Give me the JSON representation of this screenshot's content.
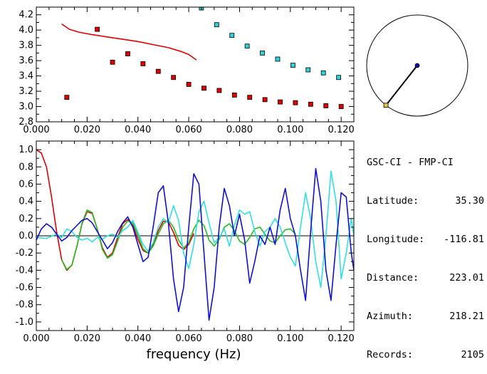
{
  "chart_data": [
    {
      "type": "scatter",
      "xlim": [
        0,
        0.125
      ],
      "ylim": [
        2.8,
        4.3
      ],
      "x_ticks": [
        "0.000",
        "0.020",
        "0.040",
        "0.060",
        "0.080",
        "0.100",
        "0.120"
      ],
      "y_ticks": [
        "2.8",
        "3.0",
        "3.2",
        "3.4",
        "3.6",
        "3.8",
        "4.0",
        "4.2"
      ],
      "colors": {
        "red_markers": "#e00000",
        "cyan_markers": "#30d0d8",
        "curve": "#e00000"
      },
      "series": [
        {
          "marker": "square",
          "color": "#e00000",
          "points": [
            [
              0.012,
              3.12
            ],
            [
              0.024,
              4.01
            ],
            [
              0.03,
              3.58
            ],
            [
              0.036,
              3.69
            ],
            [
              0.042,
              3.56
            ],
            [
              0.048,
              3.46
            ],
            [
              0.054,
              3.38
            ],
            [
              0.06,
              3.29
            ],
            [
              0.066,
              3.24
            ],
            [
              0.072,
              3.21
            ],
            [
              0.078,
              3.15
            ],
            [
              0.084,
              3.12
            ],
            [
              0.09,
              3.09
            ],
            [
              0.096,
              3.06
            ],
            [
              0.102,
              3.05
            ],
            [
              0.108,
              3.03
            ],
            [
              0.114,
              3.01
            ],
            [
              0.12,
              3.0
            ]
          ]
        },
        {
          "marker": "square",
          "color": "#30d0d8",
          "points": [
            [
              0.065,
              4.29
            ],
            [
              0.071,
              4.07
            ],
            [
              0.077,
              3.93
            ],
            [
              0.083,
              3.79
            ],
            [
              0.089,
              3.7
            ],
            [
              0.095,
              3.62
            ],
            [
              0.101,
              3.54
            ],
            [
              0.107,
              3.48
            ],
            [
              0.113,
              3.44
            ],
            [
              0.119,
              3.38
            ]
          ]
        },
        {
          "marker": "line",
          "color": "#e00000",
          "points": [
            [
              0.01,
              4.08
            ],
            [
              0.013,
              4.01
            ],
            [
              0.017,
              3.97
            ],
            [
              0.022,
              3.94
            ],
            [
              0.028,
              3.91
            ],
            [
              0.034,
              3.88
            ],
            [
              0.04,
              3.85
            ],
            [
              0.046,
              3.81
            ],
            [
              0.052,
              3.77
            ],
            [
              0.057,
              3.72
            ],
            [
              0.06,
              3.68
            ],
            [
              0.063,
              3.61
            ]
          ]
        }
      ]
    },
    {
      "type": "line",
      "xlim": [
        0,
        0.125
      ],
      "ylim": [
        -1.1,
        1.1
      ],
      "xlabel": "frequency (Hz)",
      "x_ticks": [
        "0.000",
        "0.020",
        "0.040",
        "0.060",
        "0.080",
        "0.100",
        "0.120"
      ],
      "y_ticks": [
        "-1.0",
        "-0.8",
        "-0.6",
        "-0.4",
        "-0.2",
        "0.0",
        "0.2",
        "0.4",
        "0.6",
        "0.8",
        "1.0"
      ],
      "zero_line": true,
      "series": [
        {
          "color": "#e00000",
          "points": [
            [
              0,
              1.0
            ],
            [
              0.002,
              0.96
            ],
            [
              0.004,
              0.8
            ],
            [
              0.006,
              0.45
            ],
            [
              0.008,
              0.05
            ],
            [
              0.01,
              -0.28
            ],
            [
              0.012,
              -0.4
            ],
            [
              0.014,
              -0.34
            ],
            [
              0.016,
              -0.12
            ],
            [
              0.018,
              0.14
            ],
            [
              0.02,
              0.28
            ],
            [
              0.022,
              0.26
            ],
            [
              0.024,
              0.08
            ],
            [
              0.026,
              -0.14
            ],
            [
              0.028,
              -0.25
            ],
            [
              0.03,
              -0.2
            ],
            [
              0.032,
              -0.02
            ],
            [
              0.034,
              0.14
            ],
            [
              0.036,
              0.19
            ],
            [
              0.038,
              0.12
            ],
            [
              0.04,
              -0.04
            ],
            [
              0.042,
              -0.17
            ],
            [
              0.044,
              -0.2
            ],
            [
              0.046,
              -0.1
            ],
            [
              0.048,
              0.06
            ],
            [
              0.05,
              0.17
            ],
            [
              0.052,
              0.16
            ],
            [
              0.054,
              0.04
            ],
            [
              0.056,
              -0.11
            ],
            [
              0.058,
              -0.16
            ],
            [
              0.06,
              -0.1
            ],
            [
              0.062,
              0.03
            ]
          ]
        },
        {
          "color": "#20c020",
          "points": [
            [
              0.01,
              -0.28
            ],
            [
              0.012,
              -0.39
            ],
            [
              0.014,
              -0.34
            ],
            [
              0.016,
              -0.12
            ],
            [
              0.018,
              0.15
            ],
            [
              0.02,
              0.3
            ],
            [
              0.022,
              0.27
            ],
            [
              0.024,
              0.08
            ],
            [
              0.026,
              -0.16
            ],
            [
              0.028,
              -0.26
            ],
            [
              0.03,
              -0.22
            ],
            [
              0.032,
              -0.06
            ],
            [
              0.034,
              0.1
            ],
            [
              0.036,
              0.17
            ],
            [
              0.038,
              0.15
            ],
            [
              0.04,
              0.01
            ],
            [
              0.042,
              -0.15
            ],
            [
              0.044,
              -0.2
            ],
            [
              0.046,
              -0.12
            ],
            [
              0.048,
              0.02
            ],
            [
              0.05,
              0.14
            ],
            [
              0.052,
              0.18
            ],
            [
              0.054,
              0.1
            ],
            [
              0.056,
              -0.05
            ],
            [
              0.058,
              -0.14
            ],
            [
              0.06,
              -0.08
            ],
            [
              0.062,
              0.08
            ],
            [
              0.064,
              0.18
            ],
            [
              0.066,
              0.12
            ],
            [
              0.068,
              -0.05
            ],
            [
              0.07,
              -0.12
            ],
            [
              0.072,
              -0.04
            ],
            [
              0.074,
              0.1
            ],
            [
              0.076,
              0.14
            ],
            [
              0.078,
              0.06
            ],
            [
              0.08,
              -0.06
            ],
            [
              0.082,
              -0.1
            ],
            [
              0.084,
              -0.02
            ],
            [
              0.086,
              0.08
            ],
            [
              0.088,
              0.1
            ],
            [
              0.09,
              0.02
            ],
            [
              0.092,
              -0.06
            ],
            [
              0.094,
              -0.08
            ],
            [
              0.096,
              0.0
            ],
            [
              0.098,
              0.07
            ],
            [
              0.1,
              0.08
            ],
            [
              0.102,
              0.02
            ]
          ]
        },
        {
          "color": "#30e0e0",
          "points": [
            [
              0,
              -0.02
            ],
            [
              0.004,
              -0.03
            ],
            [
              0.008,
              0.02
            ],
            [
              0.01,
              -0.02
            ],
            [
              0.012,
              0.08
            ],
            [
              0.014,
              0.05
            ],
            [
              0.016,
              -0.02
            ],
            [
              0.018,
              -0.05
            ],
            [
              0.02,
              -0.03
            ],
            [
              0.022,
              -0.07
            ],
            [
              0.024,
              -0.02
            ],
            [
              0.026,
              -0.04
            ],
            [
              0.028,
              0.0
            ],
            [
              0.03,
              0.02
            ],
            [
              0.032,
              -0.02
            ],
            [
              0.034,
              0.06
            ],
            [
              0.036,
              0.1
            ],
            [
              0.038,
              0.18
            ],
            [
              0.04,
              0.04
            ],
            [
              0.042,
              -0.1
            ],
            [
              0.044,
              -0.18
            ],
            [
              0.046,
              -0.08
            ],
            [
              0.048,
              0.1
            ],
            [
              0.05,
              0.2
            ],
            [
              0.052,
              0.15
            ],
            [
              0.054,
              0.35
            ],
            [
              0.056,
              0.18
            ],
            [
              0.058,
              -0.2
            ],
            [
              0.06,
              -0.38
            ],
            [
              0.062,
              -0.1
            ],
            [
              0.064,
              0.28
            ],
            [
              0.066,
              0.4
            ],
            [
              0.068,
              0.15
            ],
            [
              0.07,
              -0.08
            ],
            [
              0.072,
              -0.02
            ],
            [
              0.074,
              0.08
            ],
            [
              0.076,
              -0.12
            ],
            [
              0.078,
              0.12
            ],
            [
              0.08,
              0.3
            ],
            [
              0.082,
              0.25
            ],
            [
              0.084,
              0.28
            ],
            [
              0.086,
              0.05
            ],
            [
              0.088,
              -0.12
            ],
            [
              0.09,
              0.05
            ],
            [
              0.092,
              0.1
            ],
            [
              0.094,
              0.2
            ],
            [
              0.096,
              0.1
            ],
            [
              0.098,
              -0.08
            ],
            [
              0.1,
              -0.25
            ],
            [
              0.102,
              -0.35
            ],
            [
              0.104,
              0.1
            ],
            [
              0.106,
              0.5
            ],
            [
              0.108,
              0.2
            ],
            [
              0.11,
              -0.3
            ],
            [
              0.112,
              -0.6
            ],
            [
              0.114,
              0.0
            ],
            [
              0.116,
              0.75
            ],
            [
              0.118,
              0.4
            ],
            [
              0.12,
              -0.5
            ],
            [
              0.122,
              -0.2
            ],
            [
              0.124,
              0.2
            ],
            [
              0.125,
              0.0
            ]
          ]
        },
        {
          "color": "#1010d0",
          "points": [
            [
              0,
              -0.05
            ],
            [
              0.002,
              0.08
            ],
            [
              0.004,
              0.14
            ],
            [
              0.006,
              0.1
            ],
            [
              0.008,
              0.02
            ],
            [
              0.01,
              -0.06
            ],
            [
              0.012,
              -0.02
            ],
            [
              0.014,
              0.06
            ],
            [
              0.016,
              0.12
            ],
            [
              0.018,
              0.18
            ],
            [
              0.02,
              0.2
            ],
            [
              0.022,
              0.15
            ],
            [
              0.024,
              0.05
            ],
            [
              0.026,
              -0.05
            ],
            [
              0.028,
              -0.15
            ],
            [
              0.03,
              -0.08
            ],
            [
              0.032,
              0.05
            ],
            [
              0.034,
              0.15
            ],
            [
              0.036,
              0.22
            ],
            [
              0.038,
              0.1
            ],
            [
              0.04,
              -0.1
            ],
            [
              0.042,
              -0.3
            ],
            [
              0.044,
              -0.25
            ],
            [
              0.046,
              0.1
            ],
            [
              0.048,
              0.5
            ],
            [
              0.05,
              0.58
            ],
            [
              0.052,
              0.15
            ],
            [
              0.054,
              -0.5
            ],
            [
              0.056,
              -0.88
            ],
            [
              0.058,
              -0.6
            ],
            [
              0.06,
              0.1
            ],
            [
              0.062,
              0.72
            ],
            [
              0.064,
              0.6
            ],
            [
              0.066,
              -0.2
            ],
            [
              0.068,
              -0.98
            ],
            [
              0.07,
              -0.6
            ],
            [
              0.072,
              0.1
            ],
            [
              0.074,
              0.55
            ],
            [
              0.076,
              0.35
            ],
            [
              0.078,
              0.0
            ],
            [
              0.08,
              0.25
            ],
            [
              0.082,
              -0.05
            ],
            [
              0.084,
              -0.55
            ],
            [
              0.086,
              -0.3
            ],
            [
              0.088,
              0.0
            ],
            [
              0.09,
              -0.1
            ],
            [
              0.092,
              0.1
            ],
            [
              0.094,
              -0.1
            ],
            [
              0.096,
              0.3
            ],
            [
              0.098,
              0.55
            ],
            [
              0.1,
              0.2
            ],
            [
              0.102,
              0.0
            ],
            [
              0.104,
              -0.4
            ],
            [
              0.106,
              -0.75
            ],
            [
              0.108,
              0.05
            ],
            [
              0.11,
              0.78
            ],
            [
              0.112,
              0.4
            ],
            [
              0.114,
              -0.4
            ],
            [
              0.116,
              -0.75
            ],
            [
              0.118,
              -0.1
            ],
            [
              0.12,
              0.5
            ],
            [
              0.122,
              0.45
            ],
            [
              0.124,
              -0.2
            ],
            [
              0.125,
              -0.4
            ]
          ]
        }
      ]
    }
  ],
  "info": {
    "stations": "GSC-CI - FMP-CI",
    "latitude_label": "Latitude:",
    "latitude": "35.30",
    "longitude_label": "Longitude:",
    "longitude": "-116.81",
    "distance_label": "Distance:",
    "distance": "223.01",
    "azimuth_label": "Azimuth:",
    "azimuth": "218.21",
    "records_label": "Records:",
    "records": "2105"
  },
  "compass": {
    "azimuth_deg": 218.21,
    "center_dot_color": "#1010a0",
    "end_dot_color": "#e8c040"
  }
}
